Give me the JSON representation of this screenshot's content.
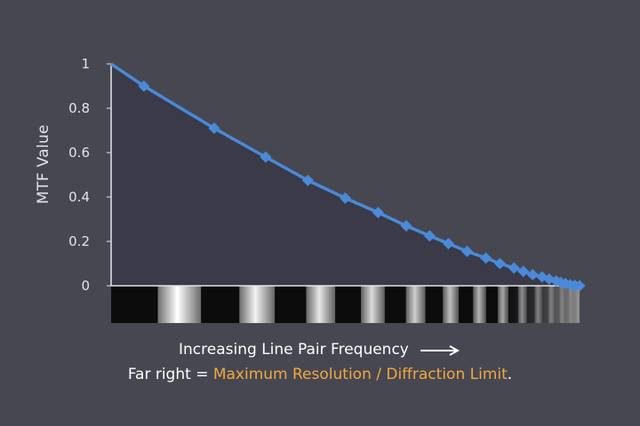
{
  "chart_data": {
    "type": "line",
    "title": "",
    "ylabel": "MTF Value",
    "xlabel": "Increasing Line Pair Frequency",
    "ylim": [
      0,
      1
    ],
    "yticks": [
      0,
      0.2,
      0.4,
      0.6,
      0.8,
      1
    ],
    "grid": false,
    "legend": "none",
    "x": [
      0.0,
      0.07,
      0.22,
      0.33,
      0.42,
      0.5,
      0.57,
      0.63,
      0.68,
      0.72,
      0.76,
      0.8,
      0.83,
      0.86,
      0.88,
      0.9,
      0.92,
      0.935,
      0.95,
      0.96,
      0.97,
      0.98,
      0.99,
      1.0
    ],
    "series": [
      {
        "values": [
          1.0,
          0.9,
          0.71,
          0.58,
          0.475,
          0.395,
          0.33,
          0.27,
          0.225,
          0.19,
          0.155,
          0.125,
          0.1,
          0.08,
          0.065,
          0.05,
          0.04,
          0.03,
          0.022,
          0.015,
          0.01,
          0.005,
          0.002,
          0.0
        ],
        "color": "#4a8ad8"
      }
    ],
    "marker": "diamond",
    "fill_under_curve_color": "#3a3a48",
    "line_pair_pattern_stripes": 14
  },
  "arrow_icon": "right-arrow-icon",
  "caption": {
    "prefix": "Far right = ",
    "highlight": "Maximum Resolution / Diffraction Limit",
    "suffix": "."
  },
  "colors": {
    "background": "#474752",
    "accent": "#f2a93b",
    "axis": "#e4e4e8"
  }
}
